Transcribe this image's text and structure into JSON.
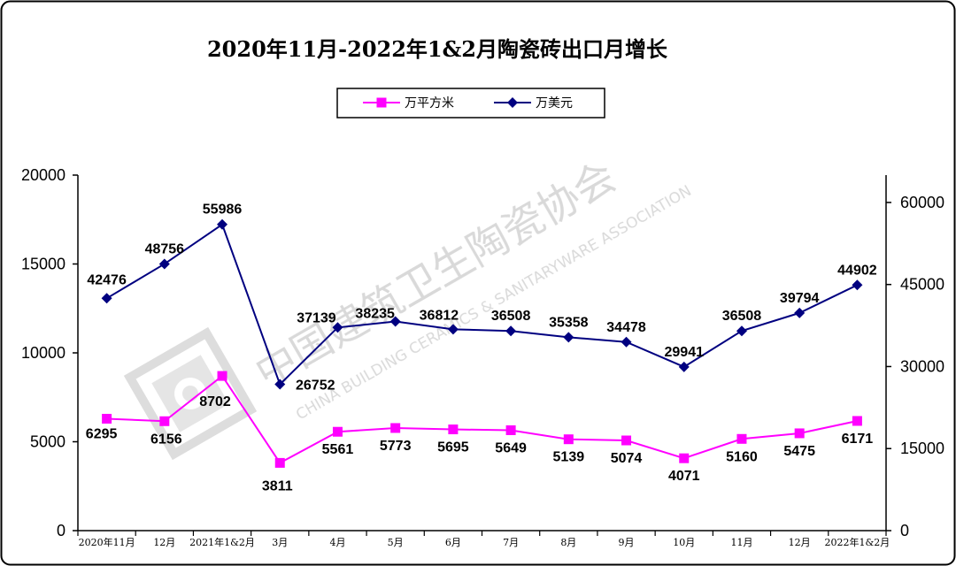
{
  "chart_data": {
    "type": "line",
    "title": "2020年11月-2022年1&2月陶瓷砖出口月增长",
    "categories": [
      "2020年11月",
      "12月",
      "2021年1&2月",
      "3月",
      "4月",
      "5月",
      "6月",
      "7月",
      "8月",
      "9月",
      "10月",
      "11月",
      "12月",
      "2022年1&2月"
    ],
    "series": [
      {
        "name": "万平方米",
        "axis": "left",
        "color": "#FF00FF",
        "marker": "square",
        "values": [
          6295,
          6156,
          8702,
          3811,
          5561,
          5773,
          5695,
          5649,
          5139,
          5074,
          4071,
          5160,
          5475,
          6171
        ]
      },
      {
        "name": "万美元",
        "axis": "right",
        "color": "#000080",
        "marker": "diamond",
        "values": [
          42476,
          48756,
          55986,
          26752,
          37139,
          38235,
          36812,
          36508,
          35358,
          34478,
          29941,
          36508,
          39794,
          44902
        ]
      }
    ],
    "y_left": {
      "min": 0,
      "max": 20000,
      "ticks": [
        "0",
        "5000",
        "10000",
        "15000",
        "20000"
      ]
    },
    "y_right": {
      "min": 0,
      "max": 65000,
      "ticks": [
        "0",
        "15000",
        "30000",
        "45000",
        "60000"
      ]
    },
    "grid": false,
    "legend_position": "top-center"
  },
  "watermark": {
    "text_cn": "中国建筑卫生陶瓷协会",
    "text_en": "CHINA BUILDING CERAMICS & SANITARYWARE ASSOCIATION"
  }
}
